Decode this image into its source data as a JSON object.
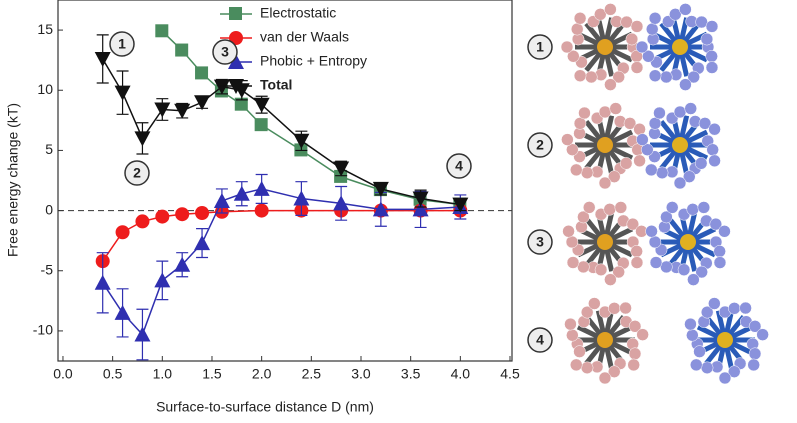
{
  "chart_data": {
    "type": "line",
    "x_label": "Surface-to-surface distance D (nm)",
    "y_label": "Free energy change (kT)",
    "xlim": [
      -0.05,
      4.52
    ],
    "ylim": [
      -12.5,
      17.5
    ],
    "xticks": [
      {
        "value": 0,
        "label": "0.0"
      },
      {
        "value": 0.5,
        "label": "0.5"
      },
      {
        "value": 1,
        "label": "1.0"
      },
      {
        "value": 1.5,
        "label": "1.5"
      },
      {
        "value": 2,
        "label": "2.0"
      },
      {
        "value": 2.5,
        "label": "2.5"
      },
      {
        "value": 3,
        "label": "3.0"
      },
      {
        "value": 3.5,
        "label": "3.5"
      },
      {
        "value": 4,
        "label": "4.0"
      },
      {
        "value": 4.5,
        "label": "4.5"
      }
    ],
    "yticks": [
      -10,
      -5,
      0,
      5,
      10,
      15
    ],
    "series": [
      {
        "name": "Electrostatic",
        "color": "#4a8c5e",
        "marker": "square",
        "x": [
          1.0,
          1.2,
          1.4,
          1.6,
          1.8,
          2.0,
          2.4,
          2.8,
          3.2,
          3.6,
          4.0
        ],
        "values": [
          14.9,
          13.3,
          11.4,
          9.9,
          8.8,
          7.1,
          5.0,
          2.8,
          1.7,
          0.9,
          0.5
        ]
      },
      {
        "name": "van der Waals",
        "color": "#ee1c1c",
        "marker": "circle",
        "x": [
          0.4,
          0.6,
          0.8,
          1.0,
          1.2,
          1.4,
          1.6,
          2.0,
          2.4,
          2.8,
          3.2,
          3.6,
          4.0
        ],
        "values": [
          -4.2,
          -1.8,
          -0.9,
          -0.5,
          -0.3,
          -0.2,
          -0.1,
          0,
          0,
          0,
          0,
          0,
          0
        ]
      },
      {
        "name": "Phobic + Entropy",
        "color": "#2f2fb0",
        "marker": "triangle-up",
        "x": [
          0.4,
          0.6,
          0.8,
          1.0,
          1.2,
          1.4,
          1.6,
          1.8,
          2.0,
          2.4,
          2.8,
          3.2,
          3.6,
          4.0
        ],
        "values": [
          -6,
          -8.5,
          -10.3,
          -5.8,
          -4.5,
          -2.7,
          0.8,
          1.4,
          1.8,
          1.0,
          0.6,
          0.1,
          0.1,
          0.3
        ],
        "errors": [
          2.5,
          2.0,
          2.1,
          1.6,
          1.0,
          1.2,
          1.0,
          1.0,
          1.2,
          1.4,
          1.4,
          1.4,
          1.5,
          1.0
        ]
      },
      {
        "name": "Total",
        "color": "#111111",
        "marker": "triangle-down",
        "x": [
          0.4,
          0.6,
          0.8,
          1.0,
          1.2,
          1.4,
          1.6,
          1.8,
          2.0,
          2.4,
          2.8,
          3.2,
          3.6,
          4.0
        ],
        "values": [
          12.6,
          9.8,
          6.0,
          8.4,
          8.3,
          9.0,
          10.3,
          10.0,
          8.8,
          5.8,
          3.5,
          1.8,
          1.0,
          0.5
        ],
        "errors": [
          2.0,
          1.8,
          1.3,
          0.9,
          0.6,
          0.5,
          0.6,
          0.8,
          0.7,
          0.8,
          0.6,
          0.5,
          0.7,
          0.5
        ]
      }
    ],
    "annotations": [
      "1",
      "2",
      "3",
      "4"
    ]
  },
  "panels": [
    "1",
    "2",
    "3",
    "4"
  ]
}
